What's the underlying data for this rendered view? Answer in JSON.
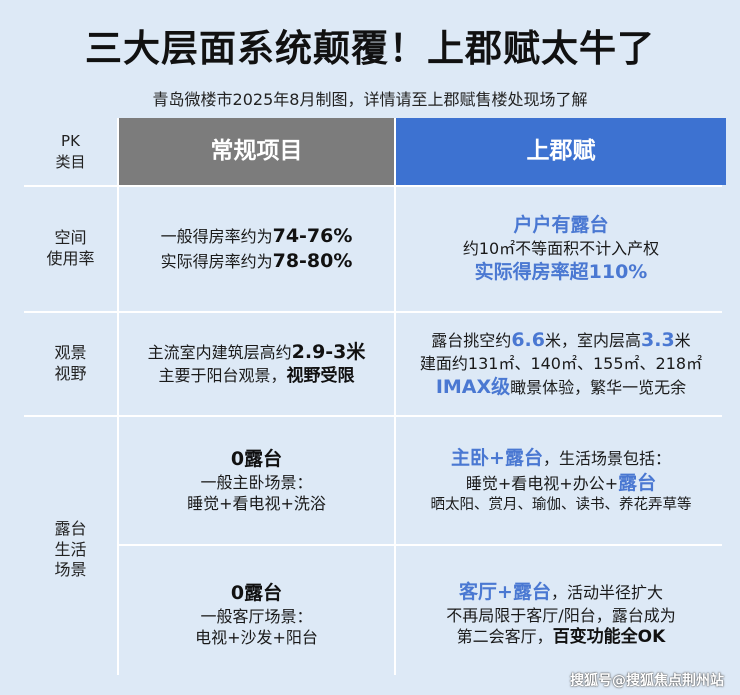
{
  "title": "三大层面系统颠覆！上郡赋太牛了",
  "subtitle": "青岛微楼市2025年8月制图，详情请至上郡赋售楼处现场了解",
  "header": {
    "pk_line1": "PK",
    "pk_line2": "类目",
    "normal": "常规项目",
    "brand": "上郡赋"
  },
  "rows": {
    "space": {
      "label_line1": "空间",
      "label_line2": "使用率",
      "normal_l1_a": "一般得房率约为",
      "normal_l1_b": "74-76%",
      "normal_l2_a": "实际得房率约为",
      "normal_l2_b": "78-80%",
      "brand_l1": "户户有露台",
      "brand_l2": "约10㎡不等面积不计入产权",
      "brand_l3": "实际得房率超110%"
    },
    "view": {
      "label_line1": "观景",
      "label_line2": "视野",
      "normal_l1_a": "主流室内建筑层高约",
      "normal_l1_b": "2.9-3米",
      "normal_l2_a": "主要于阳台观景，",
      "normal_l2_b": "视野受限",
      "brand_l1_a": "露台挑空约",
      "brand_l1_b": "6.6",
      "brand_l1_c": "米，室内层高",
      "brand_l1_d": "3.3",
      "brand_l1_e": "米",
      "brand_l2": "建面约131㎡、140㎡、155㎡、218㎡",
      "brand_l3_a": "IMAX级",
      "brand_l3_b": "瞰景体验，繁华一览无余"
    },
    "terrace": {
      "label_line1": "露台",
      "label_line2": "生活",
      "label_line3": "场景",
      "normal_a_title": "0露台",
      "normal_a_l2": "一般主卧场景：",
      "normal_a_l3": "睡觉+看电视+洗浴",
      "brand_a_l1_a": "主卧+露台",
      "brand_a_l1_b": "，生活场景包括：",
      "brand_a_l2_a": "睡觉+看电视+办公+",
      "brand_a_l2_b": "露台",
      "brand_a_l3": "晒太阳、赏月、瑜伽、读书、养花弄草等",
      "normal_b_title": "0露台",
      "normal_b_l2": "一般客厅场景：",
      "normal_b_l3": "电视+沙发+阳台",
      "brand_b_l1_a": "客厅+露台",
      "brand_b_l1_b": "，活动半径扩大",
      "brand_b_l2": "不再局限于客厅/阳台，露台成为",
      "brand_b_l3_a": "第二会客厅，",
      "brand_b_l3_b": "百变功能全OK"
    }
  },
  "watermark": "搜狐号@搜狐焦点荆州站",
  "colors": {
    "background": "#dde9f6",
    "normal_header": "#7c7c7c",
    "brand_header": "#3d72d1",
    "highlight_blue": "#4a78d2"
  }
}
